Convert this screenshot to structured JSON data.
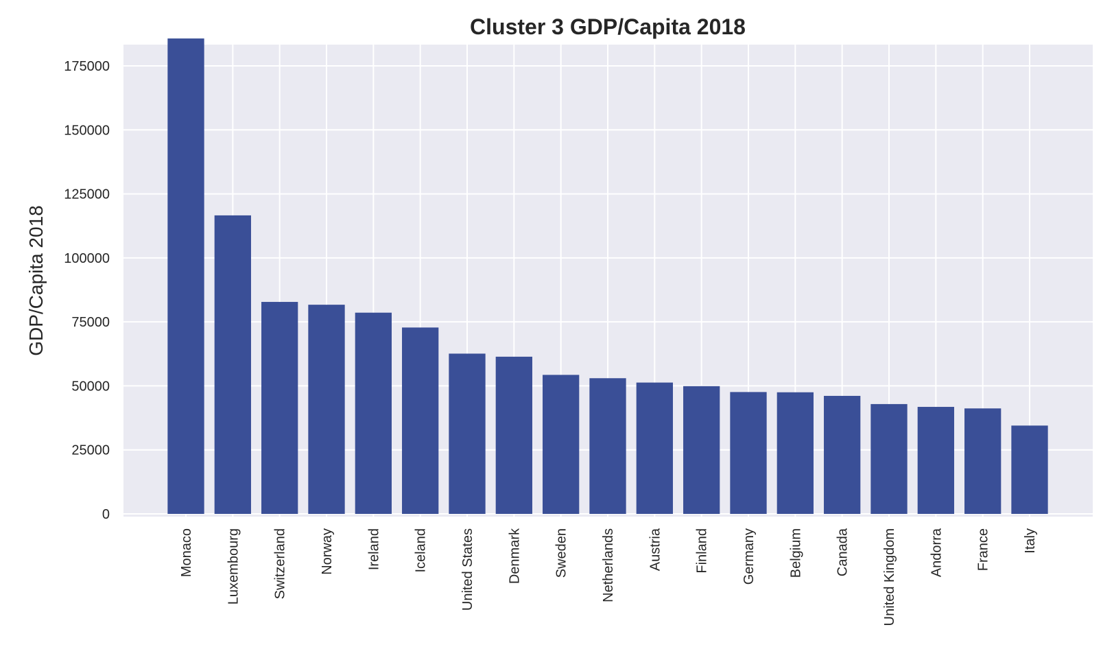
{
  "chart_data": {
    "type": "bar",
    "title": "Cluster 3 GDP/Capita 2018",
    "xlabel": "",
    "ylabel": "GDP/Capita 2018",
    "ylim": [
      0,
      185000
    ],
    "yticks": [
      0,
      25000,
      50000,
      75000,
      100000,
      125000,
      150000,
      175000
    ],
    "ytick_labels": [
      "0",
      "25000",
      "50000",
      "75000",
      "100000",
      "125000",
      "150000",
      "175000"
    ],
    "grid": true,
    "categories": [
      "Monaco",
      "Luxembourg",
      "Switzerland",
      "Norway",
      "Ireland",
      "Iceland",
      "United States",
      "Denmark",
      "Sweden",
      "Netherlands",
      "Austria",
      "Finland",
      "Germany",
      "Belgium",
      "Canada",
      "United Kingdom",
      "Andorra",
      "France",
      "Italy"
    ],
    "values": [
      185700,
      116600,
      82800,
      81700,
      78600,
      72800,
      62600,
      61400,
      54300,
      53000,
      51300,
      49900,
      47600,
      47500,
      46100,
      42900,
      41800,
      41200,
      34500
    ],
    "colors": {
      "bar": "#3a4f97",
      "plot_background": "#eaeaf2",
      "grid": "#ffffff",
      "text": "#262626"
    }
  }
}
